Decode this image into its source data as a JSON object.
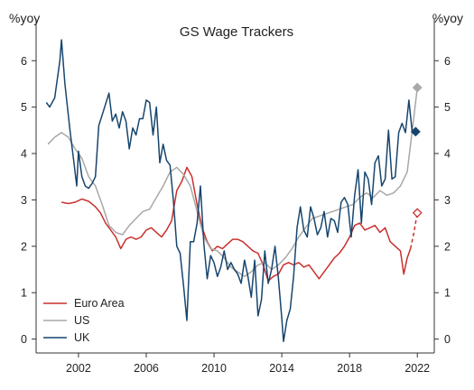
{
  "chart_data": {
    "type": "line",
    "title": "GS Wage Trackers",
    "ylabel_left": "%yoy",
    "ylabel_right": "%yoy",
    "xlim": [
      1999.5,
      2023.0
    ],
    "ylim": [
      -0.3,
      6.9
    ],
    "yticks": [
      0,
      1,
      2,
      3,
      4,
      5,
      6
    ],
    "xticks": [
      2002,
      2006,
      2010,
      2014,
      2018,
      2022
    ],
    "grid": false,
    "legend_position": "bottom-left",
    "series": [
      {
        "name": "Euro Area",
        "color": "#c9302c",
        "dashed_from": 2021.6,
        "end_marker": "diamond-open",
        "x": [
          2001.0,
          2001.4,
          2001.8,
          2002.2,
          2002.6,
          2003.0,
          2003.3,
          2003.6,
          2003.9,
          2004.2,
          2004.5,
          2004.8,
          2005.1,
          2005.4,
          2005.7,
          2006.0,
          2006.3,
          2006.6,
          2006.9,
          2007.2,
          2007.5,
          2007.8,
          2008.1,
          2008.4,
          2008.7,
          2009.0,
          2009.3,
          2009.6,
          2009.9,
          2010.2,
          2010.5,
          2010.8,
          2011.1,
          2011.4,
          2011.7,
          2012.0,
          2012.3,
          2012.6,
          2012.9,
          2013.2,
          2013.5,
          2013.8,
          2014.1,
          2014.4,
          2014.7,
          2015.0,
          2015.3,
          2015.6,
          2015.9,
          2016.2,
          2016.5,
          2016.8,
          2017.1,
          2017.4,
          2017.7,
          2018.0,
          2018.3,
          2018.6,
          2018.9,
          2019.2,
          2019.5,
          2019.8,
          2020.1,
          2020.4,
          2020.7,
          2021.0,
          2021.2,
          2021.4,
          2021.6,
          2021.8,
          2022.0
        ],
        "values": [
          2.95,
          2.92,
          2.95,
          3.02,
          2.97,
          2.85,
          2.72,
          2.5,
          2.35,
          2.2,
          1.95,
          2.15,
          2.2,
          2.15,
          2.2,
          2.35,
          2.4,
          2.3,
          2.2,
          2.35,
          2.55,
          3.2,
          3.4,
          3.7,
          3.5,
          2.9,
          2.4,
          2.1,
          1.9,
          2.0,
          1.95,
          2.05,
          2.15,
          2.15,
          2.1,
          2.0,
          1.9,
          1.85,
          1.6,
          1.25,
          1.35,
          1.4,
          1.6,
          1.65,
          1.6,
          1.65,
          1.55,
          1.6,
          1.45,
          1.3,
          1.45,
          1.6,
          1.75,
          1.85,
          2.0,
          2.2,
          2.45,
          2.5,
          2.35,
          2.4,
          2.45,
          2.3,
          2.4,
          2.1,
          2.0,
          1.9,
          1.4,
          1.75,
          1.95,
          2.3,
          2.72
        ]
      },
      {
        "name": "US",
        "color": "#a8a8a8",
        "end_marker": "diamond",
        "x": [
          2000.2,
          2000.6,
          2001.0,
          2001.4,
          2001.8,
          2002.2,
          2002.6,
          2003.0,
          2003.4,
          2003.8,
          2004.2,
          2004.6,
          2005.0,
          2005.4,
          2005.8,
          2006.2,
          2006.6,
          2007.0,
          2007.4,
          2007.8,
          2008.2,
          2008.6,
          2009.0,
          2009.4,
          2009.8,
          2010.2,
          2010.6,
          2011.0,
          2011.4,
          2011.8,
          2012.2,
          2012.6,
          2013.0,
          2013.4,
          2013.8,
          2014.2,
          2014.6,
          2015.0,
          2015.4,
          2015.8,
          2016.2,
          2016.6,
          2017.0,
          2017.4,
          2017.8,
          2018.2,
          2018.6,
          2019.0,
          2019.4,
          2019.8,
          2020.2,
          2020.6,
          2021.0,
          2021.4,
          2021.8,
          2022.0
        ],
        "values": [
          4.2,
          4.35,
          4.45,
          4.35,
          4.1,
          3.9,
          3.5,
          3.3,
          2.9,
          2.45,
          2.3,
          2.25,
          2.45,
          2.6,
          2.75,
          2.8,
          3.05,
          3.3,
          3.6,
          3.7,
          3.55,
          3.3,
          2.75,
          2.2,
          1.95,
          1.9,
          1.75,
          1.55,
          1.45,
          1.35,
          1.45,
          1.6,
          1.65,
          1.5,
          1.6,
          1.75,
          1.95,
          2.2,
          2.4,
          2.6,
          2.65,
          2.7,
          2.75,
          2.8,
          2.85,
          2.9,
          3.05,
          3.15,
          3.05,
          3.2,
          3.1,
          3.15,
          3.3,
          3.6,
          4.8,
          5.42
        ]
      },
      {
        "name": "UK",
        "color": "#17456e",
        "end_marker": "diamond",
        "x": [
          2000.1,
          2000.3,
          2000.6,
          2000.9,
          2001.0,
          2001.2,
          2001.5,
          2001.7,
          2001.9,
          2002.0,
          2002.2,
          2002.4,
          2002.6,
          2002.8,
          2003.0,
          2003.2,
          2003.5,
          2003.8,
          2004.0,
          2004.2,
          2004.4,
          2004.6,
          2004.8,
          2005.0,
          2005.2,
          2005.4,
          2005.6,
          2005.8,
          2006.0,
          2006.2,
          2006.4,
          2006.6,
          2006.8,
          2007.0,
          2007.2,
          2007.4,
          2007.6,
          2007.8,
          2008.0,
          2008.2,
          2008.4,
          2008.6,
          2008.8,
          2009.0,
          2009.2,
          2009.4,
          2009.6,
          2009.8,
          2010.0,
          2010.2,
          2010.4,
          2010.6,
          2010.8,
          2011.0,
          2011.2,
          2011.4,
          2011.6,
          2011.8,
          2012.0,
          2012.2,
          2012.4,
          2012.6,
          2012.8,
          2013.0,
          2013.2,
          2013.4,
          2013.6,
          2013.8,
          2014.0,
          2014.1,
          2014.3,
          2014.5,
          2014.7,
          2014.9,
          2015.1,
          2015.3,
          2015.5,
          2015.7,
          2015.9,
          2016.1,
          2016.3,
          2016.5,
          2016.7,
          2016.9,
          2017.1,
          2017.3,
          2017.5,
          2017.7,
          2017.9,
          2018.1,
          2018.3,
          2018.5,
          2018.7,
          2018.9,
          2019.1,
          2019.3,
          2019.5,
          2019.7,
          2019.9,
          2020.1,
          2020.3,
          2020.5,
          2020.7,
          2020.9,
          2021.1,
          2021.3,
          2021.5,
          2021.7,
          2021.9
        ],
        "values": [
          5.1,
          5.0,
          5.2,
          6.0,
          6.45,
          5.5,
          4.5,
          3.9,
          3.3,
          4.05,
          3.5,
          3.3,
          3.25,
          3.35,
          3.5,
          4.6,
          4.95,
          5.3,
          4.7,
          4.85,
          4.55,
          4.9,
          4.7,
          4.1,
          4.55,
          4.4,
          4.75,
          4.75,
          5.15,
          5.1,
          4.4,
          5.0,
          3.8,
          4.2,
          3.85,
          3.75,
          3.0,
          2.0,
          1.85,
          1.15,
          0.4,
          2.1,
          2.1,
          2.5,
          3.3,
          2.05,
          1.3,
          1.8,
          1.65,
          1.35,
          1.55,
          1.9,
          1.5,
          1.65,
          1.5,
          1.4,
          1.2,
          1.7,
          1.35,
          0.9,
          1.7,
          0.5,
          0.85,
          1.9,
          1.2,
          1.5,
          2.0,
          1.3,
          0.45,
          -0.05,
          0.4,
          0.65,
          1.35,
          2.4,
          2.85,
          2.35,
          2.2,
          2.85,
          2.6,
          2.25,
          2.4,
          2.75,
          2.2,
          2.6,
          2.55,
          2.3,
          2.95,
          3.05,
          2.9,
          2.2,
          3.1,
          3.65,
          2.5,
          3.6,
          3.45,
          2.9,
          3.8,
          3.95,
          3.3,
          3.45,
          4.5,
          3.45,
          3.5,
          4.45,
          4.65,
          4.45,
          5.15,
          4.45,
          4.47
        ]
      }
    ]
  }
}
